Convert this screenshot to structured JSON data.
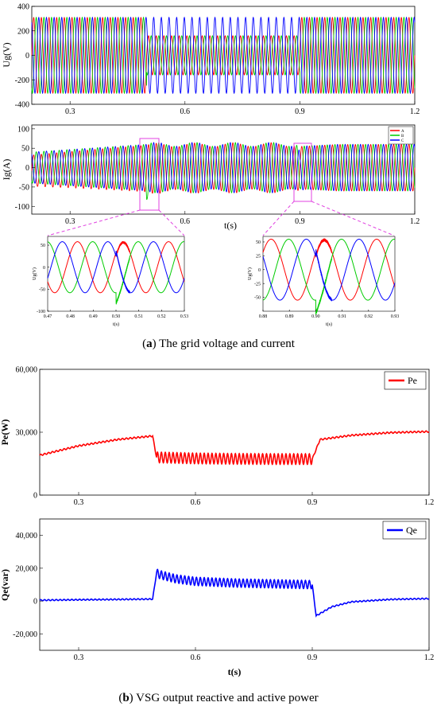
{
  "caption_a": {
    "bold": "a",
    "text": " The grid voltage and current"
  },
  "caption_b": {
    "bold": "b",
    "text": " VSG output reactive and active power"
  },
  "chart_data": [
    {
      "id": "ug",
      "type": "line",
      "ylabel": "Ug(V)",
      "xlabel": "",
      "xlim": [
        0.2,
        1.2
      ],
      "ylim": [
        -400,
        400
      ],
      "xticks": [
        0.3,
        0.6,
        0.9,
        1.2
      ],
      "yticks": [
        -400,
        -200,
        0,
        200,
        400
      ],
      "series": [
        {
          "phase": "A",
          "color": "#ff0000",
          "amplitude_normal": 310,
          "amplitude_fault": 160,
          "fault_window": [
            0.5,
            0.9
          ],
          "freq_hz": 50
        },
        {
          "phase": "B",
          "color": "#00cc00",
          "amplitude_normal": 310,
          "amplitude_fault": 160,
          "fault_window": [
            0.5,
            0.9
          ],
          "freq_hz": 50
        },
        {
          "phase": "C",
          "color": "#0000ff",
          "amplitude_normal": 310,
          "amplitude_fault": 310,
          "fault_window": [
            0.5,
            0.9
          ],
          "freq_hz": 50
        }
      ]
    },
    {
      "id": "ig",
      "type": "line",
      "ylabel": "Ig(A)",
      "xlabel": "t(s)",
      "xlim": [
        0.2,
        1.2
      ],
      "ylim": [
        -120,
        110
      ],
      "xticks": [
        0.3,
        0.6,
        0.9,
        1.2
      ],
      "yticks": [
        -100,
        -50,
        0,
        50,
        100
      ],
      "legend": [
        "A",
        "B",
        "C"
      ],
      "series": [
        {
          "name": "A",
          "color": "#ff0000"
        },
        {
          "name": "B",
          "color": "#00cc00"
        },
        {
          "name": "C",
          "color": "#0000ff"
        }
      ]
    },
    {
      "id": "zoom1",
      "type": "line",
      "ylabel": "Ug(V)",
      "xlabel": "t(s)",
      "xlim": [
        0.47,
        0.53
      ],
      "ylim": [
        -100,
        70
      ],
      "xticks": [
        0.47,
        0.48,
        0.49,
        0.5,
        0.51,
        0.52,
        0.53
      ],
      "xtick_labels": [
        "0.47",
        "0.48",
        "0.49",
        "0.50",
        "0.51",
        "0.52",
        "0.53"
      ],
      "yticks": [
        -100,
        -50,
        0,
        50
      ]
    },
    {
      "id": "zoom2",
      "type": "line",
      "ylabel": "Ug(V)",
      "xlabel": "t(s)",
      "xlim": [
        0.88,
        0.93
      ],
      "ylim": [
        -75,
        60
      ],
      "xticks": [
        0.88,
        0.89,
        0.9,
        0.91,
        0.92,
        0.93
      ],
      "xtick_labels": [
        "0.88",
        "0.89",
        "0.90",
        "0.91",
        "0.92",
        "0.93"
      ],
      "yticks": [
        -50,
        -25,
        0,
        25,
        50
      ]
    },
    {
      "id": "pe",
      "type": "line",
      "ylabel": "Pe(W)",
      "xlabel": "",
      "xlim": [
        0.2,
        1.2
      ],
      "ylim": [
        0,
        60000
      ],
      "xticks": [
        0.3,
        0.6,
        0.9,
        1.2
      ],
      "yticks": [
        0,
        30000,
        60000
      ],
      "ytick_labels": [
        "0",
        "30,000",
        "60,000"
      ],
      "legend": [
        "Pe"
      ],
      "series": [
        {
          "name": "Pe",
          "color": "#ff0000",
          "x": [
            0.2,
            0.3,
            0.4,
            0.49,
            0.5,
            0.6,
            0.7,
            0.8,
            0.9,
            0.92,
            1.0,
            1.1,
            1.2
          ],
          "y": [
            19000,
            23500,
            26500,
            28200,
            18000,
            17500,
            17300,
            17200,
            17200,
            26500,
            28500,
            29800,
            30300
          ],
          "ripple_window": [
            0.5,
            0.9
          ],
          "ripple_amplitude": 2500
        }
      ]
    },
    {
      "id": "qe",
      "type": "line",
      "ylabel": "Qe(var)",
      "xlabel": "t(s)",
      "xlim": [
        0.2,
        1.2
      ],
      "ylim": [
        -30000,
        50000
      ],
      "xticks": [
        0.3,
        0.6,
        0.9,
        1.2
      ],
      "yticks": [
        -20000,
        0,
        20000,
        40000
      ],
      "ytick_labels": [
        "-20,000",
        "0",
        "20,000",
        "40,000"
      ],
      "legend": [
        "Qe"
      ],
      "series": [
        {
          "name": "Qe",
          "color": "#0000ff",
          "x": [
            0.2,
            0.3,
            0.4,
            0.49,
            0.5,
            0.51,
            0.55,
            0.6,
            0.7,
            0.8,
            0.9,
            0.91,
            0.95,
            1.0,
            1.1,
            1.2
          ],
          "y": [
            500,
            800,
            1000,
            1200,
            17000,
            16000,
            13500,
            12000,
            11000,
            10500,
            10000,
            -9000,
            -3500,
            -500,
            1000,
            1500
          ],
          "ripple_window": [
            0.5,
            0.9
          ],
          "ripple_amplitude": 2500
        }
      ]
    }
  ]
}
